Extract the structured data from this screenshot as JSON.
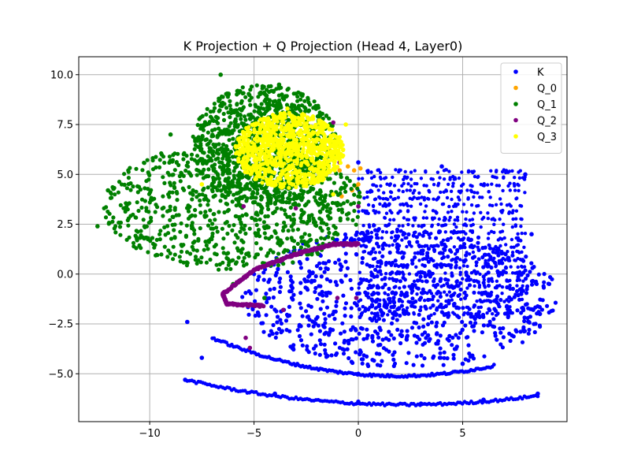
{
  "chart_data": {
    "type": "scatter",
    "title": "K Projection + Q Projection (Head 4, Layer0)",
    "xlabel": "",
    "ylabel": "",
    "xlim": [
      -13.4,
      10.0
    ],
    "ylim": [
      -7.4,
      10.9
    ],
    "xticks": [
      -10,
      -5,
      0,
      5
    ],
    "xtick_labels": [
      "−10",
      "−5",
      "0",
      "5"
    ],
    "yticks": [
      -5.0,
      -2.5,
      0.0,
      2.5,
      5.0,
      7.5,
      10.0
    ],
    "ytick_labels": [
      "−5.0",
      "−2.5",
      "0.0",
      "2.5",
      "5.0",
      "7.5",
      "10.0"
    ],
    "grid": true,
    "legend_position": "top-right",
    "series": [
      {
        "name": "K",
        "color": "#0000ff",
        "regions": [
          {
            "shape": "ellipse",
            "cx": 2.0,
            "cy": -1.2,
            "rx": 7.6,
            "ry": 3.5,
            "density": "dense"
          },
          {
            "shape": "band",
            "x_range": [
              0.0,
              8.0
            ],
            "y_range": [
              -2.0,
              5.5
            ],
            "density": "striped"
          },
          {
            "shape": "line",
            "x_range": [
              -8.3,
              8.6
            ],
            "y_range": [
              -5.3,
              -6.1
            ],
            "y_mid": -6.5
          },
          {
            "shape": "line",
            "x_range": [
              -7.0,
              6.5
            ],
            "y_range": [
              -3.2,
              -4.6
            ],
            "y_mid": -5.0
          }
        ],
        "points": [
          {
            "x": -8.3,
            "y": -5.3
          },
          {
            "x": -4.0,
            "y": -6.0
          },
          {
            "x": 0.0,
            "y": -6.4
          },
          {
            "x": 3.0,
            "y": -6.5
          },
          {
            "x": 6.0,
            "y": -6.3
          },
          {
            "x": 8.6,
            "y": -6.0
          },
          {
            "x": -7.5,
            "y": -4.2
          },
          {
            "x": 0.0,
            "y": -5.0
          },
          {
            "x": 5.0,
            "y": -4.5
          },
          {
            "x": 0.0,
            "y": 5.6
          },
          {
            "x": 4.0,
            "y": 5.4
          },
          {
            "x": 8.0,
            "y": 5.0
          },
          {
            "x": 8.7,
            "y": -2.0
          },
          {
            "x": 8.3,
            "y": 2.0
          },
          {
            "x": -8.2,
            "y": -2.4
          }
        ]
      },
      {
        "name": "Q_0",
        "color": "#ffa500",
        "points": [
          {
            "x": -0.5,
            "y": 5.4
          },
          {
            "x": -0.2,
            "y": 5.2
          },
          {
            "x": 0.0,
            "y": 4.5
          },
          {
            "x": -0.3,
            "y": 4.2
          },
          {
            "x": -0.8,
            "y": 3.9
          },
          {
            "x": -0.1,
            "y": 4.4
          },
          {
            "x": -0.9,
            "y": 5.2
          },
          {
            "x": 0.1,
            "y": 5.3
          }
        ]
      },
      {
        "name": "Q_1",
        "color": "#008000",
        "regions": [
          {
            "shape": "ellipse",
            "cx": -6.0,
            "cy": 3.4,
            "rx": 6.2,
            "ry": 3.2,
            "density": "dense"
          },
          {
            "shape": "ellipse",
            "cx": -4.5,
            "cy": 6.5,
            "rx": 3.5,
            "ry": 3.0,
            "density": "dense"
          }
        ],
        "points": [
          {
            "x": -12.5,
            "y": 2.4
          },
          {
            "x": -12.0,
            "y": 4.2
          },
          {
            "x": -6.6,
            "y": 10.0
          },
          {
            "x": -3.8,
            "y": 9.5
          },
          {
            "x": -9.0,
            "y": 7.0
          },
          {
            "x": -1.0,
            "y": 2.0
          },
          {
            "x": -4.5,
            "y": -1.2
          },
          {
            "x": -6.0,
            "y": -0.5
          }
        ]
      },
      {
        "name": "Q_2",
        "color": "#800080",
        "curve": [
          {
            "x": 0.0,
            "y": 1.5
          },
          {
            "x": -1.2,
            "y": 1.5
          },
          {
            "x": -3.0,
            "y": 1.0
          },
          {
            "x": -5.0,
            "y": 0.2
          },
          {
            "x": -6.5,
            "y": -1.0
          },
          {
            "x": -6.3,
            "y": -1.5
          },
          {
            "x": -4.5,
            "y": -1.6
          }
        ],
        "points": [
          {
            "x": -5.5,
            "y": 3.4
          },
          {
            "x": -3.0,
            "y": 3.3
          },
          {
            "x": 0.0,
            "y": 3.4
          },
          {
            "x": -3.6,
            "y": -1.8
          },
          {
            "x": -5.4,
            "y": -3.2
          },
          {
            "x": -5.2,
            "y": -3.7
          },
          {
            "x": -1.0,
            "y": -1.2
          },
          {
            "x": -0.1,
            "y": -1.2
          },
          {
            "x": -1.2,
            "y": 7.6
          },
          {
            "x": -1.4,
            "y": 6.3
          },
          {
            "x": -0.9,
            "y": 5.6
          }
        ]
      },
      {
        "name": "Q_3",
        "color": "#ffff00",
        "regions": [
          {
            "shape": "ellipse",
            "cx": -3.3,
            "cy": 6.2,
            "rx": 2.6,
            "ry": 1.9,
            "density": "dense"
          }
        ],
        "points": [
          {
            "x": -5.7,
            "y": 6.0
          },
          {
            "x": -1.0,
            "y": 6.6
          },
          {
            "x": -3.4,
            "y": 8.3
          },
          {
            "x": -1.2,
            "y": 4.0
          },
          {
            "x": -7.5,
            "y": 4.5
          },
          {
            "x": -0.6,
            "y": 7.5
          }
        ]
      }
    ]
  }
}
